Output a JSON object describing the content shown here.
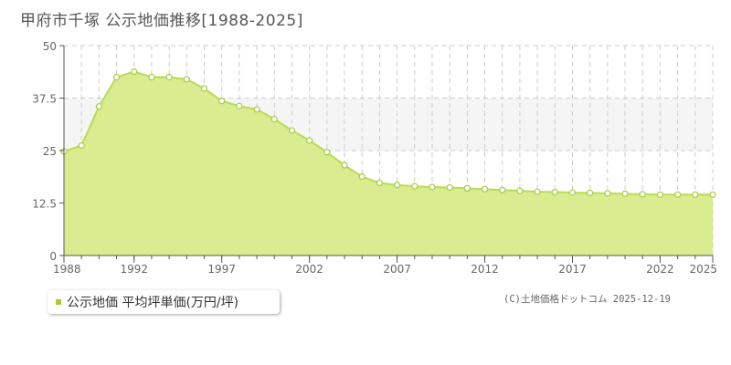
{
  "title": "甲府市千塚 公示地価推移[1988-2025]",
  "legend_label": "公示地価 平均坪単価(万円/坪)",
  "credit": "(C)土地価格ドットコム 2025-12-19",
  "colors": {
    "fill": "#d9ec8f",
    "line": "#b8dc55",
    "marker_stroke": "#a6cc44",
    "grid": "#cccccc",
    "band": "#f5f5f5"
  },
  "chart_data": {
    "type": "area",
    "title": "甲府市千塚 公示地価推移[1988-2025]",
    "xlabel": "",
    "ylabel": "",
    "ylim": [
      0,
      50
    ],
    "xlim": [
      1988,
      2025
    ],
    "yticks": [
      0,
      12.5,
      25,
      37.5,
      50
    ],
    "ytick_labels": [
      "0",
      "12.5",
      "25",
      "37.5",
      "50"
    ],
    "xticks": [
      1988,
      1992,
      1997,
      2002,
      2007,
      2012,
      2017,
      2022,
      2025
    ],
    "legend_position": "bottom-left",
    "grid": true,
    "series": [
      {
        "name": "公示地価 平均坪単価(万円/坪)",
        "x": [
          1988,
          1989,
          1990,
          1991,
          1992,
          1993,
          1994,
          1995,
          1996,
          1997,
          1998,
          1999,
          2000,
          2001,
          2002,
          2003,
          2004,
          2005,
          2006,
          2007,
          2008,
          2009,
          2010,
          2011,
          2012,
          2013,
          2014,
          2015,
          2016,
          2017,
          2018,
          2019,
          2020,
          2021,
          2022,
          2023,
          2024,
          2025
        ],
        "values": [
          24.8,
          26.2,
          35.5,
          42.5,
          43.8,
          42.5,
          42.5,
          42.0,
          39.8,
          36.8,
          35.6,
          34.8,
          32.5,
          29.8,
          27.4,
          24.6,
          21.5,
          18.8,
          17.3,
          16.8,
          16.5,
          16.3,
          16.2,
          16.0,
          15.8,
          15.6,
          15.4,
          15.2,
          15.1,
          15.0,
          14.9,
          14.8,
          14.7,
          14.6,
          14.5,
          14.5,
          14.5,
          14.5
        ]
      }
    ]
  }
}
